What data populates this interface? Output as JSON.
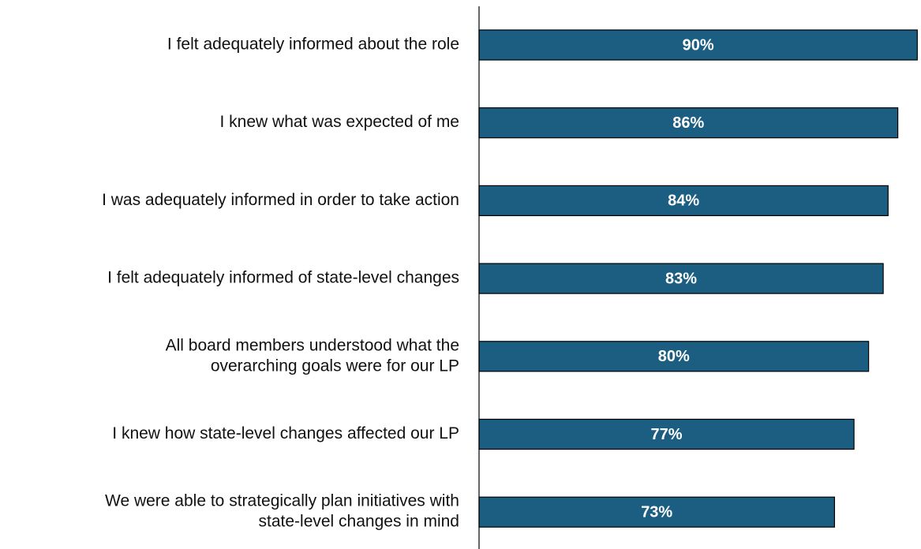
{
  "chart_data": {
    "type": "barh",
    "categories": [
      [
        "I felt adequately informed about the role"
      ],
      [
        "I knew what was expected of me"
      ],
      [
        "I was adequately informed in order to take action"
      ],
      [
        "I felt adequately informed of state-level changes"
      ],
      [
        "All board members understood what the",
        "overarching goals were for our LP"
      ],
      [
        "I knew how state-level changes affected our LP"
      ],
      [
        "We were able to strategically plan initiatives with",
        "state-level changes in mind"
      ]
    ],
    "values": [
      90,
      86,
      84,
      83,
      80,
      77,
      73
    ],
    "value_labels": [
      "90%",
      "86%",
      "84%",
      "83%",
      "80%",
      "77%",
      "73%"
    ],
    "color": "#1b5e82",
    "xlim": [
      0,
      100
    ]
  }
}
